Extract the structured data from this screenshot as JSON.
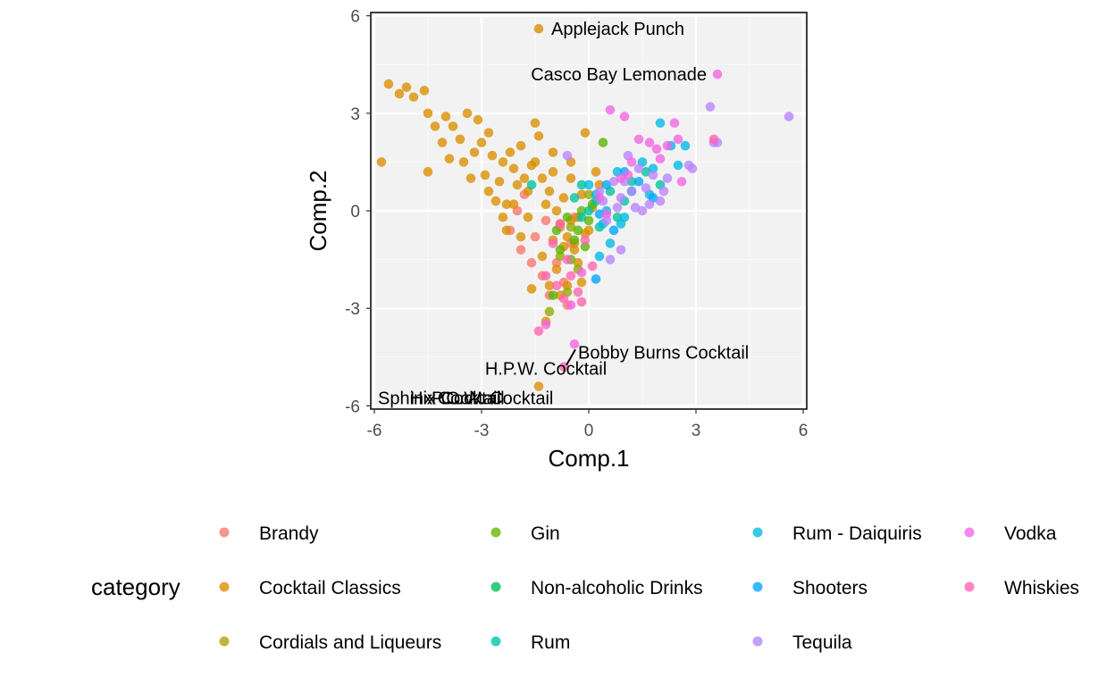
{
  "chart_data": {
    "type": "scatter",
    "title": "",
    "xlabel": "Comp.1",
    "ylabel": "Comp.2",
    "xlim": [
      -6.1,
      6.1
    ],
    "ylim": [
      -6.1,
      6.1
    ],
    "x_ticks": [
      -6,
      -3,
      0,
      3,
      6
    ],
    "y_ticks": [
      -6,
      -3,
      0,
      3,
      6
    ],
    "x_tick_labels": [
      "-6",
      "-3",
      "0",
      "3",
      "6"
    ],
    "y_tick_labels": [
      "-6",
      "-3",
      "0",
      "3",
      "6"
    ],
    "grid": true,
    "legend_position": "bottom",
    "legend_title": "category",
    "series": [
      {
        "name": "Brandy",
        "color": "#F8766D",
        "points": [
          [
            -2.2,
            -0.6
          ],
          [
            -1.9,
            -1.2
          ],
          [
            -1.5,
            -0.8
          ],
          [
            -1.2,
            -0.3
          ],
          [
            -0.9,
            -1.6
          ],
          [
            -0.7,
            -2.2
          ],
          [
            -0.5,
            -1.0
          ],
          [
            -1.3,
            -2.0
          ],
          [
            -0.8,
            -0.5
          ],
          [
            -1.6,
            -1.6
          ],
          [
            -2.0,
            0.0
          ],
          [
            -1.1,
            -2.6
          ],
          [
            -0.4,
            -0.2
          ],
          [
            -0.6,
            -2.9
          ],
          [
            -1.8,
            0.5
          ]
        ]
      },
      {
        "name": "Cocktail Classics",
        "color": "#DB8E00",
        "points": [
          [
            -5.8,
            1.5
          ],
          [
            -5.6,
            3.9
          ],
          [
            -5.3,
            3.6
          ],
          [
            -5.1,
            3.8
          ],
          [
            -4.9,
            3.5
          ],
          [
            -4.6,
            3.7
          ],
          [
            -4.5,
            3.0
          ],
          [
            -4.3,
            2.6
          ],
          [
            -4.1,
            2.1
          ],
          [
            -4.0,
            2.9
          ],
          [
            -3.8,
            2.6
          ],
          [
            -3.6,
            2.2
          ],
          [
            -3.5,
            1.5
          ],
          [
            -3.4,
            3.0
          ],
          [
            -3.2,
            1.8
          ],
          [
            -3.1,
            2.8
          ],
          [
            -3.0,
            2.1
          ],
          [
            -2.9,
            1.1
          ],
          [
            -2.8,
            0.6
          ],
          [
            -2.7,
            1.7
          ],
          [
            -2.5,
            0.9
          ],
          [
            -2.4,
            1.5
          ],
          [
            -2.3,
            0.2
          ],
          [
            -2.2,
            1.8
          ],
          [
            -2.1,
            1.3
          ],
          [
            -2.0,
            0.8
          ],
          [
            -1.8,
            1.0
          ],
          [
            -1.7,
            0.6
          ],
          [
            -1.6,
            1.4
          ],
          [
            -1.5,
            2.7
          ],
          [
            -1.4,
            2.3
          ],
          [
            -1.3,
            1.0
          ],
          [
            -1.2,
            0.2
          ],
          [
            -1.1,
            0.6
          ],
          [
            -1.0,
            1.2
          ],
          [
            -0.9,
            0.0
          ],
          [
            -0.8,
            -0.4
          ],
          [
            -0.7,
            0.4
          ],
          [
            -0.6,
            -0.8
          ],
          [
            -0.5,
            1.0
          ],
          [
            -0.4,
            -1.2
          ],
          [
            -0.3,
            -0.2
          ],
          [
            -0.2,
            0.5
          ],
          [
            -0.1,
            2.4
          ],
          [
            0.0,
            -0.6
          ],
          [
            0.1,
            0.1
          ],
          [
            0.2,
            1.2
          ],
          [
            -1.5,
            1.5
          ],
          [
            -1.3,
            -1.4
          ],
          [
            -1.1,
            -2.3
          ],
          [
            -0.9,
            -1.8
          ],
          [
            -0.7,
            -1.1
          ],
          [
            -0.5,
            -0.3
          ],
          [
            -0.3,
            -1.6
          ],
          [
            -0.2,
            -2.2
          ],
          [
            -1.9,
            -0.8
          ],
          [
            -2.1,
            0.2
          ],
          [
            -1.6,
            -2.4
          ],
          [
            -1.2,
            -3.4
          ],
          [
            -0.8,
            -2.6
          ],
          [
            -2.3,
            -0.6
          ],
          [
            -1.0,
            -0.9
          ],
          [
            -0.6,
            -2.3
          ],
          [
            -0.4,
            -1.0
          ],
          [
            -1.4,
            -5.4
          ],
          [
            -1.4,
            5.6
          ],
          [
            -3.3,
            1.0
          ],
          [
            -2.6,
            0.3
          ],
          [
            -4.5,
            1.2
          ],
          [
            -3.9,
            1.6
          ],
          [
            -2.8,
            2.4
          ],
          [
            -1.9,
            2.0
          ],
          [
            -1.0,
            1.8
          ],
          [
            -0.5,
            1.5
          ],
          [
            -2.4,
            -0.2
          ],
          [
            -1.7,
            -0.2
          ],
          [
            -0.1,
            -0.7
          ],
          [
            0.3,
            0.8
          ]
        ]
      },
      {
        "name": "Cordials and Liqueurs",
        "color": "#93AA00",
        "points": [
          [
            -1.1,
            -3.1
          ],
          [
            -0.8,
            -1.4
          ],
          [
            -0.5,
            -0.5
          ],
          [
            -0.3,
            -1.8
          ],
          [
            0.0,
            0.5
          ],
          [
            -0.6,
            -2.5
          ]
        ]
      },
      {
        "name": "Gin",
        "color": "#5BB300",
        "points": [
          [
            0.4,
            2.1
          ],
          [
            -0.3,
            -0.6
          ],
          [
            -0.6,
            -0.2
          ],
          [
            -0.4,
            -0.9
          ],
          [
            -0.2,
            0.0
          ],
          [
            0.1,
            0.2
          ],
          [
            -1.0,
            -2.6
          ],
          [
            -0.8,
            -1.2
          ],
          [
            -0.5,
            -1.5
          ],
          [
            0.0,
            -0.3
          ],
          [
            -0.9,
            -0.6
          ],
          [
            -0.1,
            -1.1
          ]
        ]
      },
      {
        "name": "Non-alcoholic Drinks",
        "color": "#00C19F",
        "points": [
          [
            -0.4,
            0.4
          ],
          [
            0.0,
            0.0
          ],
          [
            -0.2,
            -0.2
          ],
          [
            0.3,
            -0.5
          ]
        ]
      },
      {
        "name": "Rum",
        "color": "#00C19F",
        "points": [
          [
            -1.6,
            0.8
          ],
          [
            0.2,
            0.3
          ],
          [
            -0.2,
            0.8
          ],
          [
            0.6,
            0.6
          ],
          [
            1.0,
            0.3
          ],
          [
            0.8,
            -0.2
          ],
          [
            1.2,
            0.9
          ],
          [
            1.6,
            1.2
          ],
          [
            2.0,
            0.8
          ]
        ]
      },
      {
        "name": "Rum - Daiquiris",
        "color": "#00B9E3",
        "points": [
          [
            2.0,
            2.7
          ],
          [
            2.3,
            2.0
          ],
          [
            2.7,
            2.0
          ],
          [
            2.5,
            1.4
          ],
          [
            1.8,
            1.3
          ],
          [
            1.2,
            0.6
          ],
          [
            0.9,
            -0.4
          ],
          [
            0.6,
            -1.0
          ],
          [
            0.3,
            -1.4
          ],
          [
            0.0,
            0.8
          ],
          [
            0.5,
            0.0
          ],
          [
            1.0,
            -0.2
          ],
          [
            1.5,
            1.5
          ],
          [
            0.2,
            0.5
          ],
          [
            0.8,
            1.2
          ],
          [
            1.7,
            0.5
          ],
          [
            0.4,
            -0.4
          ]
        ]
      },
      {
        "name": "Shooters",
        "color": "#00A5FF",
        "points": [
          [
            0.2,
            -2.1
          ],
          [
            0.5,
            0.8
          ],
          [
            1.0,
            1.2
          ],
          [
            1.4,
            0.9
          ],
          [
            0.7,
            -0.6
          ],
          [
            0.3,
            -0.1
          ],
          [
            1.8,
            0.4
          ]
        ]
      },
      {
        "name": "Tequila",
        "color": "#B983FF",
        "points": [
          [
            3.4,
            3.2
          ],
          [
            3.5,
            2.1
          ],
          [
            3.6,
            2.1
          ],
          [
            2.8,
            1.4
          ],
          [
            2.9,
            1.3
          ],
          [
            1.1,
            1.7
          ],
          [
            0.7,
            0.9
          ],
          [
            0.9,
            0.4
          ],
          [
            1.3,
            0.1
          ],
          [
            1.6,
            0.7
          ],
          [
            2.0,
            0.3
          ],
          [
            2.2,
            1.0
          ],
          [
            0.4,
            0.3
          ],
          [
            0.6,
            -1.5
          ],
          [
            0.9,
            -1.2
          ],
          [
            1.2,
            0.6
          ],
          [
            1.8,
            1.1
          ],
          [
            0.3,
            0.6
          ],
          [
            0.5,
            -0.3
          ],
          [
            1.5,
            0.0
          ],
          [
            2.1,
            0.6
          ],
          [
            1.0,
            0.9
          ],
          [
            0.8,
            0.1
          ],
          [
            1.4,
            1.3
          ],
          [
            1.7,
            0.2
          ],
          [
            5.6,
            2.9
          ],
          [
            -0.6,
            1.7
          ]
        ]
      },
      {
        "name": "Vodka",
        "color": "#F564E3",
        "points": [
          [
            3.6,
            4.2
          ],
          [
            0.6,
            3.1
          ],
          [
            1.0,
            2.9
          ],
          [
            1.4,
            2.2
          ],
          [
            1.7,
            2.1
          ],
          [
            2.0,
            1.6
          ],
          [
            2.2,
            2.0
          ],
          [
            2.5,
            2.2
          ],
          [
            2.4,
            2.7
          ],
          [
            1.2,
            1.5
          ],
          [
            0.9,
            1.0
          ],
          [
            0.5,
            -0.1
          ],
          [
            0.3,
            0.4
          ],
          [
            -0.2,
            -1.9
          ],
          [
            -0.5,
            -2.9
          ],
          [
            -1.2,
            -3.5
          ],
          [
            -0.4,
            -4.1
          ],
          [
            1.1,
            1.1
          ],
          [
            1.9,
            1.9
          ],
          [
            2.6,
            0.9
          ]
        ]
      },
      {
        "name": "Whiskies",
        "color": "#FF64B0",
        "points": [
          [
            3.5,
            2.2
          ],
          [
            -0.7,
            -4.8
          ],
          [
            -1.4,
            -3.7
          ],
          [
            -1.2,
            -2.0
          ],
          [
            -0.9,
            -2.3
          ],
          [
            -0.6,
            -1.5
          ],
          [
            -0.3,
            -2.5
          ],
          [
            -0.1,
            -0.9
          ],
          [
            -0.8,
            -0.4
          ],
          [
            0.1,
            -1.7
          ],
          [
            -0.5,
            -2.0
          ],
          [
            -1.0,
            -1.0
          ],
          [
            -0.2,
            -2.8
          ],
          [
            -0.7,
            -2.7
          ]
        ]
      }
    ],
    "annotations": [
      {
        "text": "Applejack Punch",
        "x": -1.4,
        "y": 5.6,
        "anchor": "start",
        "dx": 0.35,
        "dy": 0.0
      },
      {
        "text": "Casco Bay Lemonade",
        "x": 3.6,
        "y": 4.2,
        "anchor": "end",
        "dx": -0.3,
        "dy": 0.0
      },
      {
        "text": "Bobby Burns Cocktail",
        "x": -0.7,
        "y": -4.8,
        "anchor": "start",
        "dx": 0.4,
        "dy": 0.45,
        "leader": true
      },
      {
        "text": "H.P.W. Cocktail",
        "x": -1.4,
        "y": -5.4,
        "anchor": "middle",
        "dx": 0.2,
        "dy": 0.55
      },
      {
        "text": "Sphinx Cocktail",
        "x": -5.9,
        "y": -5.6,
        "anchor": "start",
        "dx": 0.0,
        "dy": -0.15
      },
      {
        "text": "Hix Cocktail",
        "x": -5.0,
        "y": -5.6,
        "anchor": "start",
        "dx": 0.0,
        "dy": -0.15
      },
      {
        "text": "P.C.W. Cocktail",
        "x": -4.4,
        "y": -5.6,
        "anchor": "start",
        "dx": 0.0,
        "dy": -0.15
      }
    ],
    "legend_columns": [
      [
        "Brandy",
        "Cocktail Classics",
        "Cordials and Liqueurs"
      ],
      [
        "Gin",
        "Non-alcoholic Drinks",
        "Rum"
      ],
      [
        "Rum - Daiquiris",
        "Shooters",
        "Tequila"
      ],
      [
        "Vodka",
        "Whiskies"
      ]
    ],
    "legend_colors": {
      "Brandy": "#F8766D",
      "Cocktail Classics": "#DB8E00",
      "Cordials and Liqueurs": "#AEA200",
      "Gin": "#64B200",
      "Non-alcoholic Drinks": "#00BD5C",
      "Rum": "#00C1A7",
      "Rum - Daiquiris": "#00BADE",
      "Shooters": "#00A6FF",
      "Tequila": "#B385FF",
      "Vodka": "#EF67EB",
      "Whiskies": "#FF63B6"
    }
  }
}
